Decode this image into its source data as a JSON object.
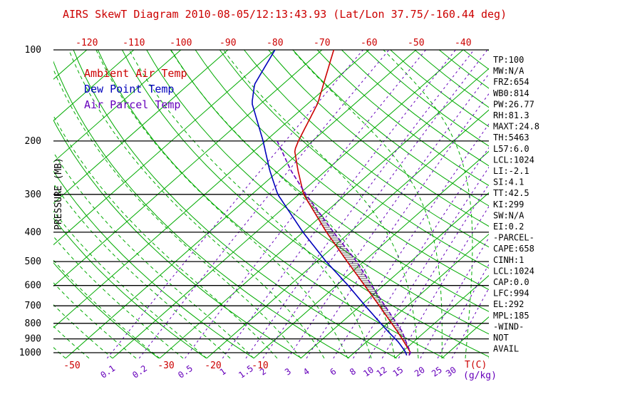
{
  "stats": [
    "TP:100",
    "MW:N/A",
    "FRZ:654",
    "WB0:814",
    "PW:26.77",
    "RH:81.3",
    "MAXT:24.8",
    "TH:5463",
    "L57:6.0",
    "LCL:1024",
    "LI:-2.1",
    "SI:4.1",
    "TT:42.5",
    "KI:299",
    "SW:N/A",
    "EI:0.2",
    "-PARCEL-",
    "CAPE:658",
    "CINH:1",
    "LCL:1024",
    "CAP:0.0",
    "LFC:994",
    "EL:292",
    "MPL:185",
    "-WIND-",
    "NOT",
    "AVAIL"
  ],
  "legend": [
    {
      "label": "Ambient Air Temp",
      "color": "#cc0000"
    },
    {
      "label": "Dew Point Temp",
      "color": "#0000bb"
    },
    {
      "label": "Air Parcel Temp",
      "color": "#6600bb"
    }
  ],
  "chart_data": {
    "type": "line",
    "title": "AIRS SkewT Diagram 2010-08-05/12:13:43.93 (Lat/Lon 37.75/-160.44 deg)",
    "colors": {
      "axis_red": "#cc0000",
      "mixing_purple": "#6600bb",
      "black": "#000000",
      "green": "#00aa00"
    },
    "y_axis": {
      "label": "PRESSURE (MB)",
      "scale": "log",
      "ticks": [
        100,
        200,
        300,
        400,
        500,
        600,
        700,
        800,
        900,
        1000
      ],
      "range": [
        100,
        1044
      ]
    },
    "x_axis": {
      "unit_label": "T(C)",
      "unit": "C",
      "top_ticks": [
        -120,
        -110,
        -100,
        -90,
        -80,
        -70,
        -60,
        -50,
        -40
      ],
      "bottom_ticks": [
        -50,
        -30,
        -20,
        -10
      ]
    },
    "mixing_ratio": {
      "unit_label": "(g/kg)",
      "values": [
        0.1,
        0.2,
        0.5,
        1,
        1.5,
        2,
        3,
        4,
        6,
        8,
        10,
        12,
        15,
        20,
        25,
        30
      ]
    },
    "series": [
      {
        "name": "Ambient Air Temp",
        "color": "#cc0000",
        "style": "solid",
        "points_p_T": [
          [
            1020,
            22.3
          ],
          [
            1000,
            22
          ],
          [
            925,
            18.2
          ],
          [
            850,
            14
          ],
          [
            700,
            4
          ],
          [
            600,
            -4
          ],
          [
            500,
            -13.5
          ],
          [
            400,
            -25
          ],
          [
            300,
            -39
          ],
          [
            250,
            -46
          ],
          [
            215,
            -51.5
          ],
          [
            200,
            -53
          ],
          [
            150,
            -58
          ],
          [
            100,
            -67.5
          ]
        ]
      },
      {
        "name": "Dew Point Temp",
        "color": "#0000bb",
        "style": "solid",
        "points_p_T": [
          [
            1020,
            21.8
          ],
          [
            1000,
            21
          ],
          [
            925,
            17
          ],
          [
            850,
            12
          ],
          [
            700,
            1
          ],
          [
            600,
            -7.5
          ],
          [
            500,
            -18
          ],
          [
            400,
            -30
          ],
          [
            300,
            -44.5
          ],
          [
            250,
            -52
          ],
          [
            200,
            -60.5
          ],
          [
            150,
            -72
          ],
          [
            130,
            -76
          ],
          [
            100,
            -80
          ]
        ]
      },
      {
        "name": "Air Parcel Temp",
        "color": "#6600bb",
        "style": "dashed",
        "points_p_T": [
          [
            1020,
            22.3
          ],
          [
            1000,
            22
          ],
          [
            925,
            18.6
          ],
          [
            850,
            15
          ],
          [
            700,
            5.2
          ],
          [
            600,
            -2.5
          ],
          [
            500,
            -11.5
          ],
          [
            400,
            -23.5
          ],
          [
            300,
            -38.5
          ],
          [
            250,
            -47.5
          ],
          [
            200,
            -57.5
          ]
        ]
      }
    ],
    "cape_hatch": {
      "from_p": 994,
      "to_p": 292
    },
    "background": {
      "isotherms_C": {
        "min": -120,
        "max": 40,
        "step": 10,
        "color": "#00aa00"
      },
      "dry_adiabats_K": {
        "min": 240,
        "max": 460,
        "step": 10,
        "color": "#00aa00"
      },
      "moist_adiabats_start_C": {
        "min": -60,
        "max": 95,
        "step": 5,
        "color": "#00aa00"
      },
      "mixing_ratio_lines": {
        "color": "#6600bb"
      }
    }
  }
}
